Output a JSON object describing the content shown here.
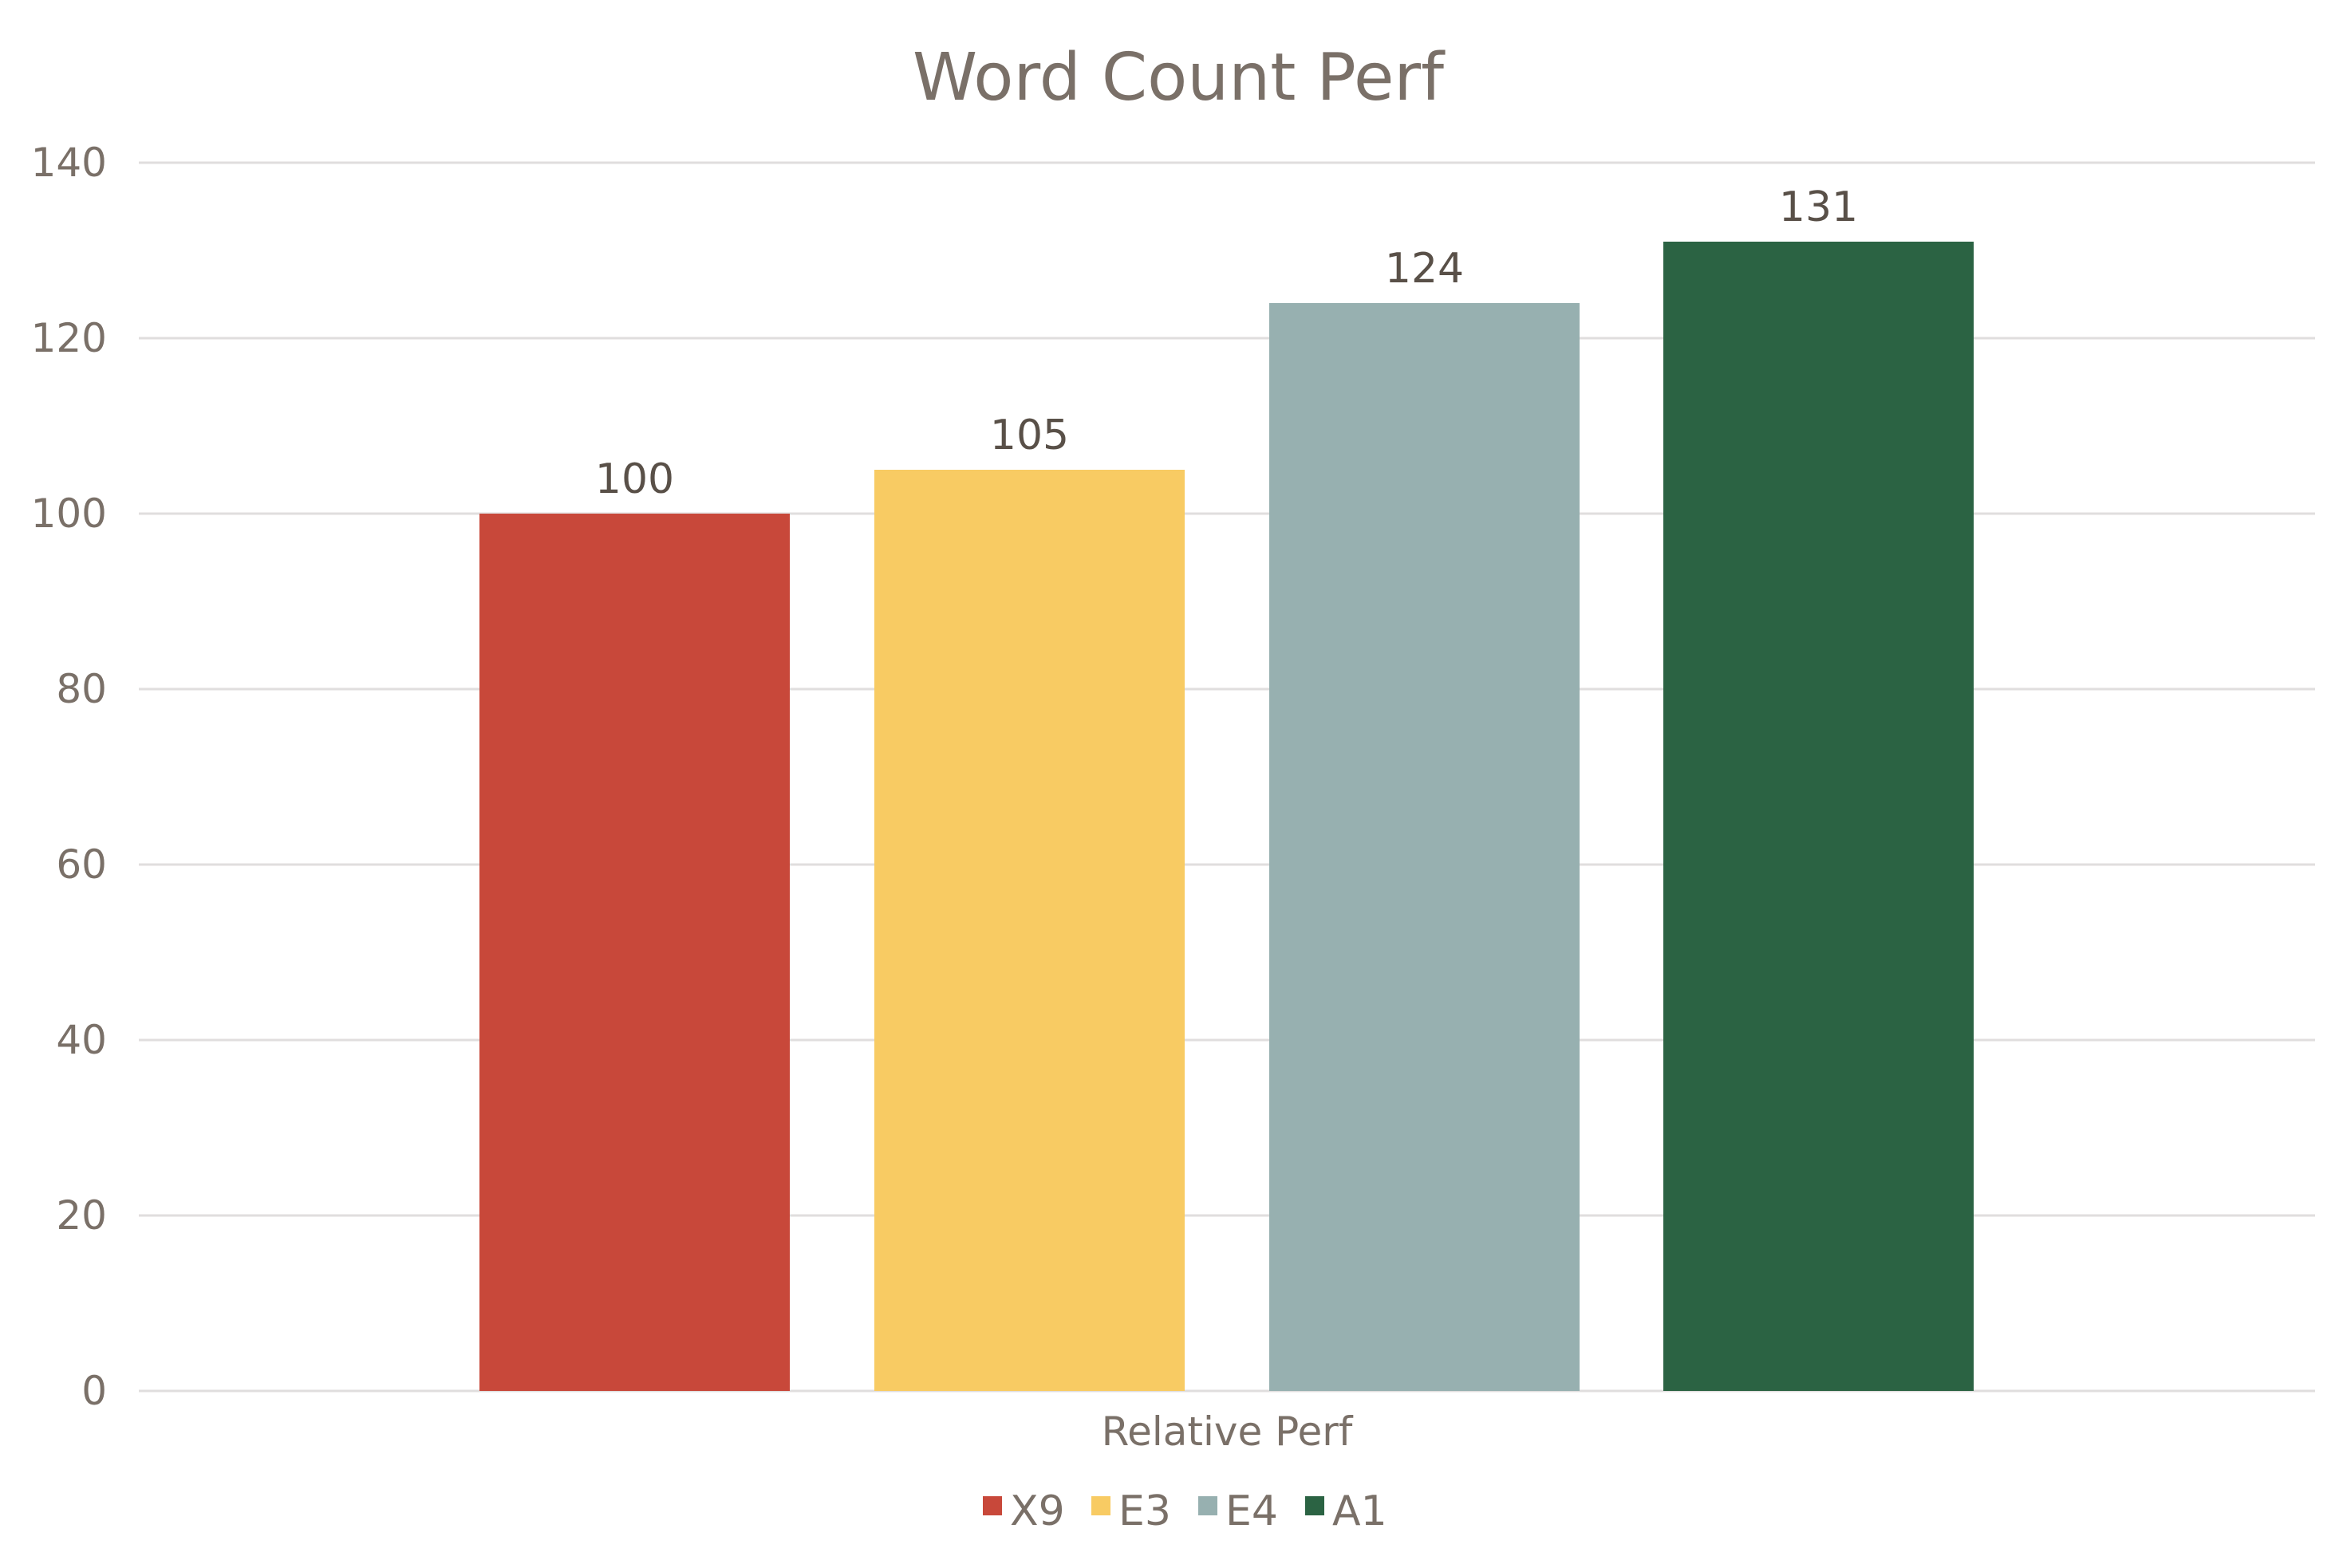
{
  "chart_data": {
    "type": "bar",
    "title": "Word Count Perf",
    "xlabel": "Relative Perf",
    "ylabel": "",
    "categories": [
      "Relative Perf"
    ],
    "series": [
      {
        "name": "X9",
        "values": [
          100
        ],
        "color": "#C8483A"
      },
      {
        "name": "E3",
        "values": [
          105
        ],
        "color": "#F8CB63"
      },
      {
        "name": "E4",
        "values": [
          124
        ],
        "color": "#97B0B0"
      },
      {
        "name": "A1",
        "values": [
          131
        ],
        "color": "#2B6343"
      }
    ],
    "ylim": [
      0,
      140
    ],
    "yticks": [
      0,
      20,
      40,
      60,
      80,
      100,
      120,
      140
    ],
    "grid": true,
    "data_labels": true,
    "legend": "bottom",
    "text_color": "#7A7068",
    "grid_color": "#E0DEDE"
  }
}
